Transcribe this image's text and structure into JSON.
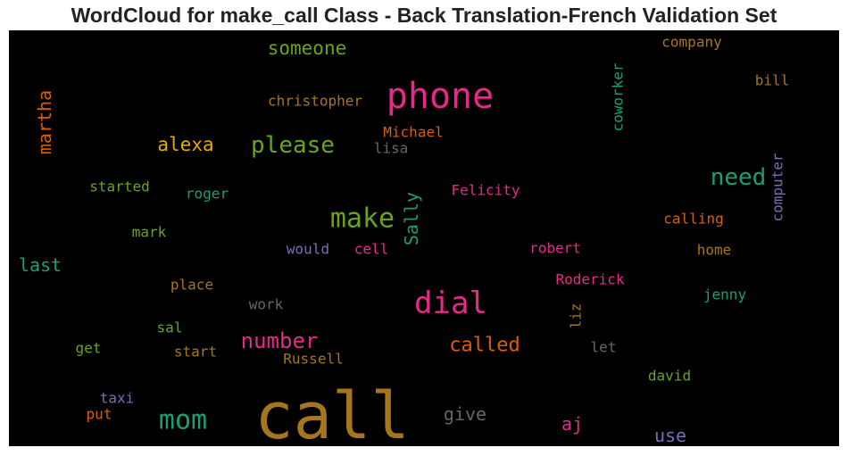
{
  "chart_data": {
    "type": "wordcloud",
    "title": "WordCloud for make_call Class - Back Translation-French Validation Set",
    "background": "#000000",
    "words": [
      {
        "text": "call",
        "color": "#a6761d",
        "orientation": "horizontal"
      },
      {
        "text": "phone",
        "color": "#e7298a",
        "orientation": "horizontal"
      },
      {
        "text": "dial",
        "color": "#e7298a",
        "orientation": "horizontal"
      },
      {
        "text": "make",
        "color": "#66a61e",
        "orientation": "horizontal"
      },
      {
        "text": "mom",
        "color": "#1b9e77",
        "orientation": "horizontal"
      },
      {
        "text": "please",
        "color": "#66a61e",
        "orientation": "horizontal"
      },
      {
        "text": "need",
        "color": "#1b9e77",
        "orientation": "horizontal"
      },
      {
        "text": "number",
        "color": "#e7298a",
        "orientation": "horizontal"
      },
      {
        "text": "someone",
        "color": "#66a61e",
        "orientation": "horizontal"
      },
      {
        "text": "martha",
        "color": "#d95f02",
        "orientation": "vertical"
      },
      {
        "text": "Sally",
        "color": "#1b9e77",
        "orientation": "vertical"
      },
      {
        "text": "called",
        "color": "#d95f02",
        "orientation": "horizontal"
      },
      {
        "text": "alexa",
        "color": "#e6ab02",
        "orientation": "horizontal"
      },
      {
        "text": "last",
        "color": "#1b9e77",
        "orientation": "horizontal"
      },
      {
        "text": "give",
        "color": "#666666",
        "orientation": "horizontal"
      },
      {
        "text": "aj",
        "color": "#e7298a",
        "orientation": "horizontal"
      },
      {
        "text": "use",
        "color": "#7570b3",
        "orientation": "horizontal"
      },
      {
        "text": "christopher",
        "color": "#a6761d",
        "orientation": "horizontal"
      },
      {
        "text": "Michael",
        "color": "#d95f02",
        "orientation": "horizontal"
      },
      {
        "text": "coworker",
        "color": "#1b9e77",
        "orientation": "vertical"
      },
      {
        "text": "computer",
        "color": "#7570b3",
        "orientation": "vertical"
      },
      {
        "text": "company",
        "color": "#a6761d",
        "orientation": "horizontal"
      },
      {
        "text": "bill",
        "color": "#a6761d",
        "orientation": "horizontal"
      },
      {
        "text": "lisa",
        "color": "#666666",
        "orientation": "horizontal"
      },
      {
        "text": "Felicity",
        "color": "#e7298a",
        "orientation": "horizontal"
      },
      {
        "text": "started",
        "color": "#66a61e",
        "orientation": "horizontal"
      },
      {
        "text": "roger",
        "color": "#1b9e77",
        "orientation": "horizontal"
      },
      {
        "text": "calling",
        "color": "#d95f02",
        "orientation": "horizontal"
      },
      {
        "text": "mark",
        "color": "#66a61e",
        "orientation": "horizontal"
      },
      {
        "text": "would",
        "color": "#7570b3",
        "orientation": "horizontal"
      },
      {
        "text": "cell",
        "color": "#e7298a",
        "orientation": "horizontal"
      },
      {
        "text": "robert",
        "color": "#e7298a",
        "orientation": "horizontal"
      },
      {
        "text": "home",
        "color": "#a6761d",
        "orientation": "horizontal"
      },
      {
        "text": "place",
        "color": "#a6761d",
        "orientation": "horizontal"
      },
      {
        "text": "Roderick",
        "color": "#e7298a",
        "orientation": "horizontal"
      },
      {
        "text": "jenny",
        "color": "#1b9e77",
        "orientation": "horizontal"
      },
      {
        "text": "work",
        "color": "#666666",
        "orientation": "horizontal"
      },
      {
        "text": "liz",
        "color": "#a6761d",
        "orientation": "vertical"
      },
      {
        "text": "sal",
        "color": "#66a61e",
        "orientation": "horizontal"
      },
      {
        "text": "get",
        "color": "#66a61e",
        "orientation": "horizontal"
      },
      {
        "text": "start",
        "color": "#a6761d",
        "orientation": "horizontal"
      },
      {
        "text": "Russell",
        "color": "#a6761d",
        "orientation": "horizontal"
      },
      {
        "text": "let",
        "color": "#666666",
        "orientation": "horizontal"
      },
      {
        "text": "david",
        "color": "#66a61e",
        "orientation": "horizontal"
      },
      {
        "text": "taxi",
        "color": "#7570b3",
        "orientation": "horizontal"
      },
      {
        "text": "put",
        "color": "#d95f02",
        "orientation": "horizontal"
      }
    ]
  }
}
